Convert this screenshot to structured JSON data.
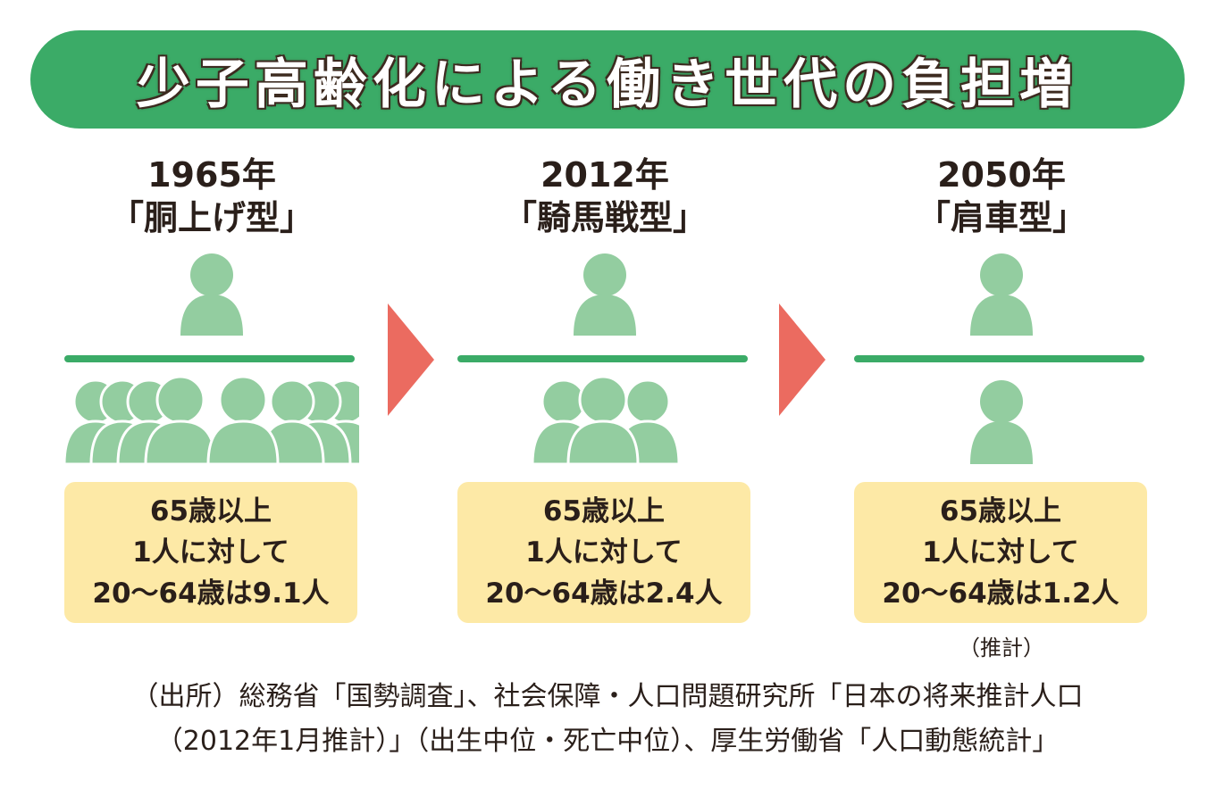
{
  "title": "少子高齢化による働き世代の負担増",
  "colors": {
    "accent_green": "#3bab67",
    "person_green": "#93cda0",
    "note_yellow": "#fde9a6",
    "arrow_red": "#eb6b60"
  },
  "columns": [
    {
      "year": "1965年",
      "type": "「胴上げ型」",
      "workers_per_elder": 9.1,
      "note_lines": [
        "65歳以上",
        "1人に対して",
        "20〜64歳は9.1人"
      ],
      "note_extra": ""
    },
    {
      "year": "2012年",
      "type": "「騎馬戦型」",
      "workers_per_elder": 2.4,
      "note_lines": [
        "65歳以上",
        "1人に対して",
        "20〜64歳は2.4人"
      ],
      "note_extra": ""
    },
    {
      "year": "2050年",
      "type": "「肩車型」",
      "workers_per_elder": 1.2,
      "note_lines": [
        "65歳以上",
        "1人に対して",
        "20〜64歳は1.2人"
      ],
      "note_extra": "（推計）"
    }
  ],
  "source_lines": [
    "（出所）総務省「国勢調査」、社会保障・人口問題研究所「日本の将来推計人口",
    "（2012年1月推計）」（出生中位・死亡中位）、厚生労働省「人口動態統計」"
  ]
}
